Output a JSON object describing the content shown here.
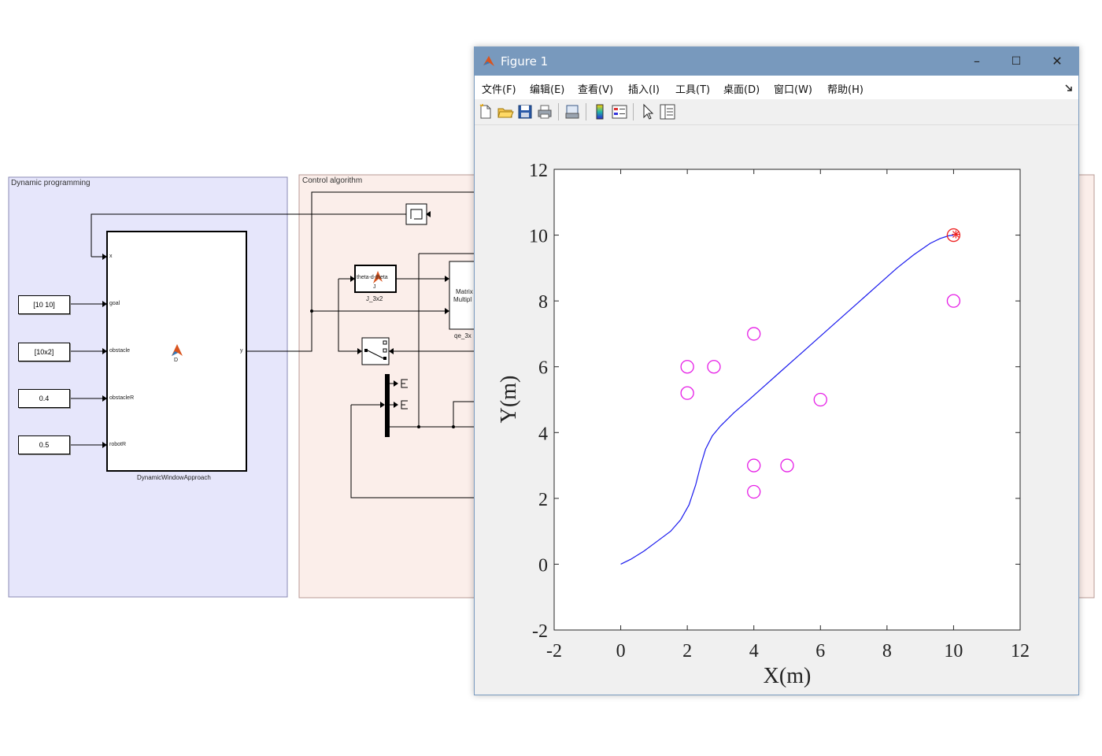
{
  "simulink": {
    "dp_area": {
      "title": "Dynamic programming"
    },
    "ctrl_area": {
      "title": "Control algorithm"
    },
    "dwa_block": {
      "name": "DynamicWindowApproach",
      "ports_in": [
        "x",
        "goal",
        "obstacle",
        "obstacleR",
        "robotR"
      ],
      "port_out": "y",
      "icon_label": "D"
    },
    "constants": [
      "[10 10]",
      "[10x2]",
      "0.4",
      "0.5"
    ],
    "j_block": {
      "inner": "theta-d-theta",
      "sub": "J",
      "name": "J_3x2"
    },
    "matrix_block": {
      "line1": "Matrix",
      "line2": "Multipl",
      "name": "qe_3x"
    }
  },
  "figure": {
    "title": "Figure 1",
    "window_buttons": {
      "minimize": "–",
      "maximize": "☐",
      "close": "✕"
    },
    "menu": [
      "文件(F)",
      "编辑(E)",
      "查看(V)",
      "插入(I)",
      "工具(T)",
      "桌面(D)",
      "窗口(W)",
      "帮助(H)"
    ],
    "toolbar_icons": [
      "new-file-icon",
      "open-folder-icon",
      "save-icon",
      "print-icon",
      "link-plot-icon",
      "colorbar-icon",
      "legend-icon",
      "pointer-icon",
      "property-inspector-icon"
    ],
    "colors": {
      "titlebar": "#7899bd",
      "trajectory": "#1a1aee",
      "obstacle": "#e61ee6",
      "goal": "#ee2222"
    }
  },
  "chart_data": {
    "type": "line",
    "xlabel": "X(m)",
    "ylabel": "Y(m)",
    "xlim": [
      -2,
      12
    ],
    "ylim": [
      -2,
      12
    ],
    "xticks": [
      -2,
      0,
      2,
      4,
      6,
      8,
      10,
      12
    ],
    "yticks": [
      -2,
      0,
      2,
      4,
      6,
      8,
      10,
      12
    ],
    "grid": false,
    "trajectory": {
      "x": [
        0,
        0.3,
        0.7,
        1.1,
        1.5,
        1.8,
        2.05,
        2.25,
        2.4,
        2.55,
        2.75,
        3.0,
        3.4,
        3.8,
        4.3,
        4.8,
        5.3,
        5.8,
        6.3,
        6.8,
        7.3,
        7.8,
        8.3,
        8.8,
        9.3,
        9.6,
        9.85,
        10.0
      ],
      "y": [
        0,
        0.15,
        0.4,
        0.7,
        1.0,
        1.35,
        1.8,
        2.4,
        3.0,
        3.5,
        3.9,
        4.2,
        4.6,
        4.95,
        5.4,
        5.85,
        6.3,
        6.75,
        7.2,
        7.65,
        8.1,
        8.55,
        9.0,
        9.4,
        9.75,
        9.9,
        9.98,
        10.0
      ]
    },
    "obstacles": {
      "x": [
        2,
        2.8,
        4,
        2,
        6,
        4,
        5,
        4,
        10
      ],
      "y": [
        6,
        6,
        7,
        5.2,
        5,
        3,
        3,
        2.2,
        8
      ]
    },
    "goal": {
      "x": 10,
      "y": 10
    }
  }
}
